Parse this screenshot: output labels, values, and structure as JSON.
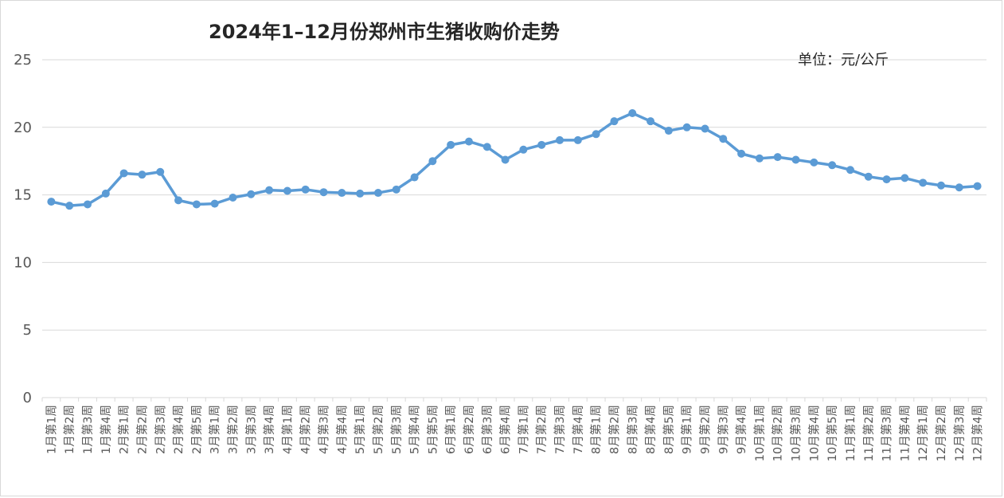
{
  "chart_data": {
    "type": "line",
    "title": "2024年1–12月份郑州市生猪收购价走势",
    "unit_note": "单位：元/公斤",
    "xlabel": "",
    "ylabel": "",
    "ylim": [
      0,
      25
    ],
    "yticks": [
      "0",
      "5",
      "10",
      "15",
      "20",
      "25"
    ],
    "grid": true,
    "legend": "none",
    "line_color": "#5B9BD5",
    "categories": [
      "1月第1周",
      "1月第2周",
      "1月第3周",
      "1月第4周",
      "2月第1周",
      "2月第2周",
      "2月第3周",
      "2月第4周",
      "2月第5周",
      "3月第1周",
      "3月第2周",
      "3月第3周",
      "3月第4周",
      "4月第1周",
      "4月第2周",
      "4月第3周",
      "4月第4周",
      "5月第1周",
      "5月第2周",
      "5月第3周",
      "5月第4周",
      "5月第5周",
      "6月第1周",
      "6月第2周",
      "6月第3周",
      "6月第4周",
      "7月第1周",
      "7月第2周",
      "7月第3周",
      "7月第4周",
      "8月第1周",
      "8月第2周",
      "8月第3周",
      "8月第4周",
      "8月第5周",
      "9月第1周",
      "9月第2周",
      "9月第3周",
      "9月第4周",
      "10月第1周",
      "10月第2周",
      "10月第3周",
      "10月第4周",
      "10月第5周",
      "11月第1周",
      "11月第2周",
      "11月第3周",
      "11月第4周",
      "12月第1周",
      "12月第2周",
      "12月第3周",
      "12月第4周"
    ],
    "series": [
      {
        "values": [
          14.5,
          14.2,
          14.3,
          15.1,
          16.6,
          16.5,
          16.7,
          14.6,
          14.3,
          14.35,
          14.8,
          15.05,
          15.35,
          15.3,
          15.4,
          15.2,
          15.15,
          15.1,
          15.15,
          15.4,
          16.3,
          17.5,
          18.7,
          18.95,
          18.55,
          17.6,
          18.35,
          18.7,
          19.05,
          19.05,
          19.5,
          20.45,
          21.05,
          20.45,
          19.75,
          20.0,
          19.9,
          19.15,
          18.05,
          17.7,
          17.8,
          17.6,
          17.4,
          17.2,
          16.85,
          16.35,
          16.15,
          16.25,
          15.9,
          15.7,
          15.55,
          15.65
        ]
      }
    ]
  }
}
